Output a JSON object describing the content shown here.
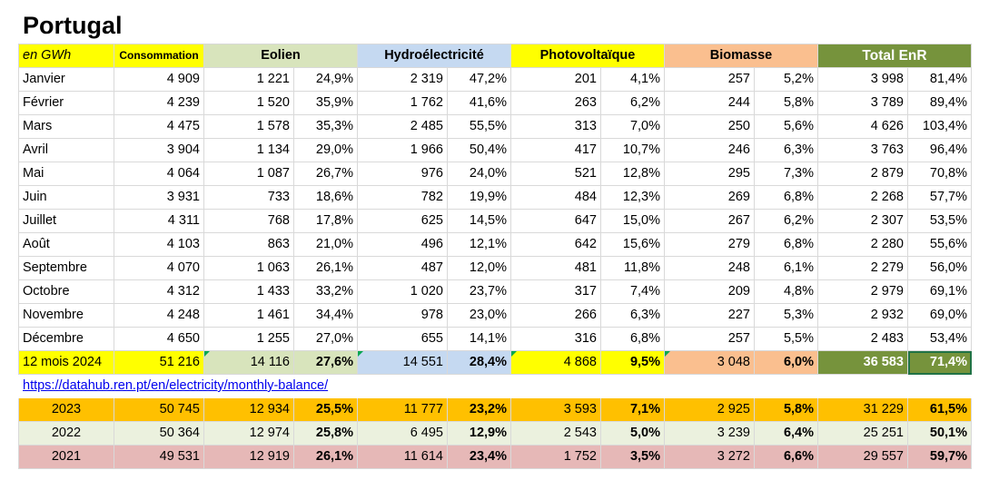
{
  "title": "Portugal",
  "header": {
    "unit": "en GWh",
    "consommation": "Consommation",
    "eolien": "Eolien",
    "hydro": "Hydroélectricité",
    "pv": "Photovoltaïque",
    "biomasse": "Biomasse",
    "total": "Total EnR"
  },
  "months": [
    {
      "label": "Janvier",
      "conso": "4 909",
      "eol": "1 221",
      "eol_pct": "24,9%",
      "hyd": "2 319",
      "hyd_pct": "47,2%",
      "pv": "201",
      "pv_pct": "4,1%",
      "bio": "257",
      "bio_pct": "5,2%",
      "tot": "3 998",
      "tot_pct": "81,4%"
    },
    {
      "label": "Février",
      "conso": "4 239",
      "eol": "1 520",
      "eol_pct": "35,9%",
      "hyd": "1 762",
      "hyd_pct": "41,6%",
      "pv": "263",
      "pv_pct": "6,2%",
      "bio": "244",
      "bio_pct": "5,8%",
      "tot": "3 789",
      "tot_pct": "89,4%"
    },
    {
      "label": "Mars",
      "conso": "4 475",
      "eol": "1 578",
      "eol_pct": "35,3%",
      "hyd": "2 485",
      "hyd_pct": "55,5%",
      "pv": "313",
      "pv_pct": "7,0%",
      "bio": "250",
      "bio_pct": "5,6%",
      "tot": "4 626",
      "tot_pct": "103,4%"
    },
    {
      "label": "Avril",
      "conso": "3 904",
      "eol": "1 134",
      "eol_pct": "29,0%",
      "hyd": "1 966",
      "hyd_pct": "50,4%",
      "pv": "417",
      "pv_pct": "10,7%",
      "bio": "246",
      "bio_pct": "6,3%",
      "tot": "3 763",
      "tot_pct": "96,4%"
    },
    {
      "label": "Mai",
      "conso": "4 064",
      "eol": "1 087",
      "eol_pct": "26,7%",
      "hyd": "976",
      "hyd_pct": "24,0%",
      "pv": "521",
      "pv_pct": "12,8%",
      "bio": "295",
      "bio_pct": "7,3%",
      "tot": "2 879",
      "tot_pct": "70,8%"
    },
    {
      "label": "Juin",
      "conso": "3 931",
      "eol": "733",
      "eol_pct": "18,6%",
      "hyd": "782",
      "hyd_pct": "19,9%",
      "pv": "484",
      "pv_pct": "12,3%",
      "bio": "269",
      "bio_pct": "6,8%",
      "tot": "2 268",
      "tot_pct": "57,7%"
    },
    {
      "label": "Juillet",
      "conso": "4 311",
      "eol": "768",
      "eol_pct": "17,8%",
      "hyd": "625",
      "hyd_pct": "14,5%",
      "pv": "647",
      "pv_pct": "15,0%",
      "bio": "267",
      "bio_pct": "6,2%",
      "tot": "2 307",
      "tot_pct": "53,5%"
    },
    {
      "label": "Août",
      "conso": "4 103",
      "eol": "863",
      "eol_pct": "21,0%",
      "hyd": "496",
      "hyd_pct": "12,1%",
      "pv": "642",
      "pv_pct": "15,6%",
      "bio": "279",
      "bio_pct": "6,8%",
      "tot": "2 280",
      "tot_pct": "55,6%"
    },
    {
      "label": "Septembre",
      "conso": "4 070",
      "eol": "1 063",
      "eol_pct": "26,1%",
      "hyd": "487",
      "hyd_pct": "12,0%",
      "pv": "481",
      "pv_pct": "11,8%",
      "bio": "248",
      "bio_pct": "6,1%",
      "tot": "2 279",
      "tot_pct": "56,0%"
    },
    {
      "label": "Octobre",
      "conso": "4 312",
      "eol": "1 433",
      "eol_pct": "33,2%",
      "hyd": "1 020",
      "hyd_pct": "23,7%",
      "pv": "317",
      "pv_pct": "7,4%",
      "bio": "209",
      "bio_pct": "4,8%",
      "tot": "2 979",
      "tot_pct": "69,1%"
    },
    {
      "label": "Novembre",
      "conso": "4 248",
      "eol": "1 461",
      "eol_pct": "34,4%",
      "hyd": "978",
      "hyd_pct": "23,0%",
      "pv": "266",
      "pv_pct": "6,3%",
      "bio": "227",
      "bio_pct": "5,3%",
      "tot": "2 932",
      "tot_pct": "69,0%"
    },
    {
      "label": "Décembre",
      "conso": "4 650",
      "eol": "1 255",
      "eol_pct": "27,0%",
      "hyd": "655",
      "hyd_pct": "14,1%",
      "pv": "316",
      "pv_pct": "6,8%",
      "bio": "257",
      "bio_pct": "5,5%",
      "tot": "2 483",
      "tot_pct": "53,4%"
    }
  ],
  "total_12m": {
    "label": "12 mois 2024",
    "conso": "51 216",
    "eol": "14 116",
    "eol_pct": "27,6%",
    "hyd": "14 551",
    "hyd_pct": "28,4%",
    "pv": "4 868",
    "pv_pct": "9,5%",
    "bio": "3 048",
    "bio_pct": "6,0%",
    "tot": "36 583",
    "tot_pct": "71,4%"
  },
  "source_link": "https://datahub.ren.pt/en/electricity/monthly-balance/",
  "years": [
    {
      "label": "2023",
      "conso": "50 745",
      "eol": "12 934",
      "eol_pct": "25,5%",
      "hyd": "11 777",
      "hyd_pct": "23,2%",
      "pv": "3 593",
      "pv_pct": "7,1%",
      "bio": "2 925",
      "bio_pct": "5,8%",
      "tot": "31 229",
      "tot_pct": "61,5%"
    },
    {
      "label": "2022",
      "conso": "50 364",
      "eol": "12 974",
      "eol_pct": "25,8%",
      "hyd": "6 495",
      "hyd_pct": "12,9%",
      "pv": "2 543",
      "pv_pct": "5,0%",
      "bio": "3 239",
      "bio_pct": "6,4%",
      "tot": "25 251",
      "tot_pct": "50,1%"
    },
    {
      "label": "2021",
      "conso": "49 531",
      "eol": "12 919",
      "eol_pct": "26,1%",
      "hyd": "11 614",
      "hyd_pct": "23,4%",
      "pv": "1 752",
      "pv_pct": "3,5%",
      "bio": "3 272",
      "bio_pct": "6,6%",
      "tot": "29 557",
      "tot_pct": "59,7%"
    }
  ],
  "colors": {
    "header_yellow": "#ffff00",
    "eolien_green": "#d8e4bc",
    "hydro_blue": "#c5d9f1",
    "biomasse_peach": "#fabf8f",
    "total_olive": "#76933c",
    "row_2023": "#ffc000",
    "row_2022": "#ebf1de",
    "row_2021": "#e6b8b7",
    "link_blue": "#0000ee"
  }
}
